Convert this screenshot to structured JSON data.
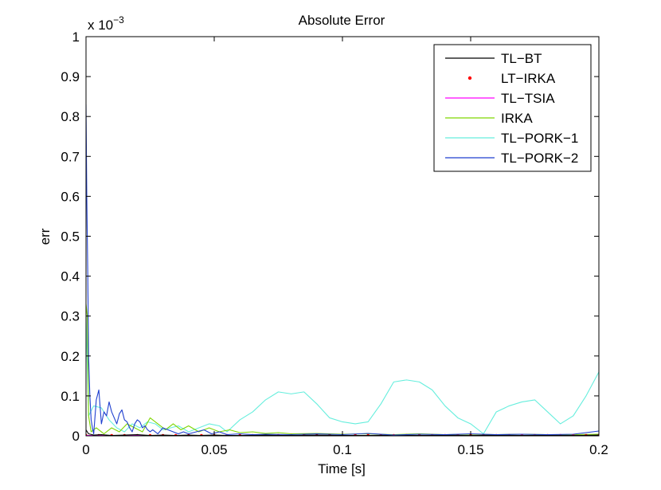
{
  "chart_data": {
    "type": "line",
    "title": "Absolute Error",
    "xlabel": "Time [s]",
    "ylabel": "err",
    "y_multiplier_base": "x 10",
    "y_multiplier_exp": "−3",
    "xlim": [
      0,
      0.2
    ],
    "ylim": [
      0,
      1
    ],
    "xticks": [
      0,
      0.05,
      0.1,
      0.15,
      0.2
    ],
    "xtick_labels": [
      "0",
      "0.05",
      "0.1",
      "0.15",
      "0.2"
    ],
    "yticks": [
      0,
      0.1,
      0.2,
      0.3,
      0.4,
      0.5,
      0.6,
      0.7,
      0.8,
      0.9,
      1
    ],
    "ytick_labels": [
      "0",
      "0.1",
      "0.2",
      "0.3",
      "0.4",
      "0.5",
      "0.6",
      "0.7",
      "0.8",
      "0.9",
      "1"
    ],
    "grid": false,
    "legend_position": "top-right",
    "series": [
      {
        "name": "TL−BT",
        "color": "#000000",
        "style": "line",
        "x": [
          0,
          0.001,
          0.003,
          0.006,
          0.01,
          0.015,
          0.02,
          0.025,
          0.03,
          0.035,
          0.04,
          0.045,
          0.05,
          0.055,
          0.06,
          0.07,
          0.08,
          0.09,
          0.1,
          0.11,
          0.12,
          0.13,
          0.14,
          0.15,
          0.16,
          0.17,
          0.18,
          0.19,
          0.2
        ],
        "values": [
          0.015,
          0.005,
          0.002,
          0.003,
          0.001,
          0.002,
          0.003,
          0.001,
          0.002,
          0.001,
          0.002,
          0.001,
          0.002,
          0.001,
          0.001,
          0.002,
          0.001,
          0.002,
          0.001,
          0.001,
          0.002,
          0.001,
          0.002,
          0.001,
          0.002,
          0.001,
          0.002,
          0.001,
          0.002
        ]
      },
      {
        "name": "LT−IRKA",
        "color": "#ff0000",
        "style": "dots",
        "x": [
          0,
          0.005,
          0.01,
          0.015,
          0.02,
          0.025,
          0.03,
          0.035,
          0.04,
          0.045,
          0.05,
          0.055,
          0.06,
          0.065,
          0.07,
          0.075,
          0.08,
          0.085,
          0.09,
          0.095,
          0.1,
          0.105,
          0.11,
          0.115,
          0.12,
          0.125,
          0.13,
          0.135,
          0.14,
          0.145,
          0.15,
          0.155,
          0.16,
          0.165,
          0.17,
          0.175,
          0.18,
          0.185,
          0.19,
          0.195,
          0.2
        ],
        "values": [
          0.001,
          0.001,
          0.001,
          0.001,
          0.001,
          0.001,
          0.001,
          0.001,
          0.001,
          0.001,
          0.001,
          0.001,
          0.001,
          0.001,
          0.001,
          0.001,
          0.001,
          0.001,
          0.001,
          0.001,
          0.001,
          0.001,
          0.001,
          0.001,
          0.001,
          0.001,
          0.001,
          0.001,
          0.001,
          0.001,
          0.001,
          0.001,
          0.001,
          0.001,
          0.001,
          0.001,
          0.001,
          0.001,
          0.001,
          0.001,
          0.001
        ]
      },
      {
        "name": "TL−TSIA",
        "color": "#ff00ff",
        "style": "line",
        "x": [
          0,
          0.02,
          0.04,
          0.06,
          0.08,
          0.1,
          0.12,
          0.14,
          0.16,
          0.18,
          0.2
        ],
        "values": [
          0.001,
          0.001,
          0.001,
          0.001,
          0.001,
          0.001,
          0.001,
          0.001,
          0.001,
          0.001,
          0.001
        ]
      },
      {
        "name": "IRKA",
        "color": "#7fd600",
        "style": "line",
        "x": [
          0,
          0.0005,
          0.001,
          0.002,
          0.004,
          0.007,
          0.01,
          0.013,
          0.016,
          0.019,
          0.022,
          0.025,
          0.028,
          0.031,
          0.034,
          0.037,
          0.04,
          0.044,
          0.048,
          0.052,
          0.056,
          0.06,
          0.065,
          0.07,
          0.075,
          0.08,
          0.09,
          0.1,
          0.11,
          0.12,
          0.13,
          0.14,
          0.15,
          0.16,
          0.17,
          0.18,
          0.19,
          0.2
        ],
        "values": [
          0.33,
          0.3,
          0.05,
          0.01,
          0.02,
          0.005,
          0.02,
          0.01,
          0.03,
          0.02,
          0.01,
          0.045,
          0.03,
          0.015,
          0.03,
          0.015,
          0.025,
          0.01,
          0.02,
          0.01,
          0.015,
          0.008,
          0.01,
          0.006,
          0.008,
          0.005,
          0.006,
          0.004,
          0.005,
          0.003,
          0.005,
          0.003,
          0.004,
          0.003,
          0.004,
          0.003,
          0.003,
          0.004
        ]
      },
      {
        "name": "TL−PORK−1",
        "color": "#66eedd",
        "style": "line",
        "x": [
          0,
          0.001,
          0.003,
          0.006,
          0.009,
          0.012,
          0.015,
          0.018,
          0.021,
          0.024,
          0.027,
          0.03,
          0.033,
          0.036,
          0.04,
          0.044,
          0.048,
          0.052,
          0.055,
          0.06,
          0.065,
          0.07,
          0.075,
          0.08,
          0.085,
          0.09,
          0.095,
          0.1,
          0.105,
          0.11,
          0.115,
          0.12,
          0.125,
          0.13,
          0.135,
          0.14,
          0.145,
          0.15,
          0.155,
          0.16,
          0.165,
          0.17,
          0.175,
          0.18,
          0.185,
          0.19,
          0.195,
          0.2
        ],
        "values": [
          0.3,
          0.05,
          0.075,
          0.07,
          0.04,
          0.02,
          0.01,
          0.03,
          0.02,
          0.035,
          0.03,
          0.015,
          0.02,
          0.025,
          0.01,
          0.02,
          0.03,
          0.025,
          0.01,
          0.04,
          0.06,
          0.09,
          0.11,
          0.105,
          0.11,
          0.08,
          0.045,
          0.035,
          0.03,
          0.035,
          0.08,
          0.135,
          0.14,
          0.135,
          0.115,
          0.075,
          0.045,
          0.03,
          0.005,
          0.06,
          0.075,
          0.085,
          0.09,
          0.06,
          0.03,
          0.05,
          0.1,
          0.16
        ]
      },
      {
        "name": "TL−PORK−2",
        "color": "#1f3fcf",
        "style": "line",
        "x": [
          0,
          0.0003,
          0.0007,
          0.001,
          0.0015,
          0.002,
          0.0025,
          0.003,
          0.004,
          0.005,
          0.006,
          0.007,
          0.008,
          0.009,
          0.01,
          0.011,
          0.012,
          0.013,
          0.014,
          0.015,
          0.016,
          0.017,
          0.018,
          0.019,
          0.02,
          0.021,
          0.022,
          0.023,
          0.024,
          0.025,
          0.026,
          0.027,
          0.028,
          0.03,
          0.032,
          0.034,
          0.036,
          0.038,
          0.04,
          0.043,
          0.046,
          0.049,
          0.052,
          0.055,
          0.06,
          0.065,
          0.07,
          0.08,
          0.09,
          0.1,
          0.11,
          0.12,
          0.13,
          0.14,
          0.15,
          0.16,
          0.17,
          0.18,
          0.19,
          0.2
        ],
        "values": [
          0.83,
          0.6,
          0.4,
          0.2,
          0.1,
          0.04,
          0.02,
          0.005,
          0.09,
          0.115,
          0.03,
          0.06,
          0.05,
          0.085,
          0.06,
          0.045,
          0.03,
          0.055,
          0.065,
          0.04,
          0.035,
          0.02,
          0.01,
          0.03,
          0.04,
          0.035,
          0.02,
          0.025,
          0.015,
          0.01,
          0.015,
          0.01,
          0.005,
          0.02,
          0.015,
          0.01,
          0.005,
          0.01,
          0.005,
          0.01,
          0.015,
          0.005,
          0.01,
          0.003,
          0.005,
          0.003,
          0.004,
          0.003,
          0.005,
          0.003,
          0.006,
          0.002,
          0.004,
          0.003,
          0.005,
          0.003,
          0.004,
          0.003,
          0.004,
          0.012
        ]
      }
    ]
  }
}
